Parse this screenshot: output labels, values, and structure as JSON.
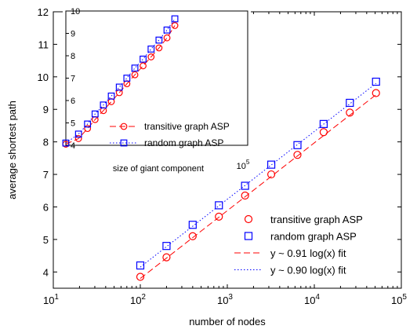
{
  "chart_data": [
    {
      "type": "scatter",
      "xlabel": "number of nodes",
      "ylabel": "average shortest path",
      "xscale": "log",
      "xlim": [
        10,
        100000
      ],
      "ylim": [
        3.5,
        12
      ],
      "xticks": [
        10,
        100,
        1000,
        10000,
        100000
      ],
      "xtick_labels": [
        {
          "base": "10",
          "exp": "1"
        },
        {
          "base": "10",
          "exp": "2"
        },
        {
          "base": "10",
          "exp": "3"
        },
        {
          "base": "10",
          "exp": "4"
        },
        {
          "base": "10",
          "exp": "5"
        }
      ],
      "yticks": [
        4,
        5,
        6,
        7,
        8,
        9,
        10,
        11,
        12
      ],
      "ytick_labels": [
        "4",
        "5",
        "6",
        "7",
        "8",
        "9",
        "10",
        "11",
        "12"
      ],
      "grid": false,
      "legend_position": "bottom-right",
      "series": [
        {
          "name": "transitive graph ASP",
          "marker": "circle",
          "color": "#ff0000",
          "x": [
            100,
            200,
            400,
            800,
            1600,
            3200,
            6400,
            12800,
            25600,
            51200
          ],
          "y": [
            3.85,
            4.45,
            5.1,
            5.7,
            6.35,
            7.0,
            7.6,
            8.3,
            8.9,
            9.5
          ]
        },
        {
          "name": "random graph ASP",
          "marker": "square",
          "color": "#0000ff",
          "x": [
            100,
            200,
            400,
            800,
            1600,
            3200,
            6400,
            12800,
            25600,
            51200
          ],
          "y": [
            4.2,
            4.8,
            5.45,
            6.05,
            6.65,
            7.3,
            7.9,
            8.55,
            9.2,
            9.85
          ]
        },
        {
          "name": "y ~ 0.91 log(x) fit",
          "style": "dashed",
          "color": "#ff0000",
          "x": [
            100,
            51200
          ],
          "y": [
            3.8,
            9.45
          ]
        },
        {
          "name": "y ~ 0.90 log(x) fit",
          "style": "dotted",
          "color": "#0000ff",
          "x": [
            100,
            51200
          ],
          "y": [
            4.15,
            9.8
          ]
        }
      ]
    },
    {
      "type": "scatter",
      "xlabel": "size of giant component",
      "ylabel": "",
      "xscale": "log",
      "xlim": [
        10,
        100000
      ],
      "ylim": [
        4,
        10
      ],
      "xticks": [
        100000
      ],
      "xtick_labels": [
        {
          "base": "10",
          "exp": "5"
        }
      ],
      "yticks": [
        4,
        5,
        6,
        7,
        8,
        9,
        10
      ],
      "ytick_labels": [
        "4",
        "5",
        "6",
        "7",
        "8",
        "9",
        "10"
      ],
      "grid": false,
      "legend_position": "bottom",
      "series": [
        {
          "name": "transitive graph ASP",
          "marker": "circle",
          "color": "#ff0000",
          "line": "dashed",
          "x": [
            10,
            19,
            30,
            44,
            67,
            100,
            150,
            220,
            330,
            500,
            750,
            1120,
            1680,
            2500
          ],
          "y": [
            4.05,
            4.3,
            4.75,
            5.15,
            5.55,
            5.95,
            6.35,
            6.75,
            7.15,
            7.55,
            7.95,
            8.35,
            8.8,
            9.35
          ]
        },
        {
          "name": "random graph ASP",
          "marker": "square",
          "color": "#0000ff",
          "line": "dotted",
          "x": [
            10,
            19,
            30,
            44,
            67,
            100,
            150,
            220,
            330,
            500,
            750,
            1120,
            1680,
            2500
          ],
          "y": [
            4.1,
            4.5,
            4.95,
            5.4,
            5.8,
            6.2,
            6.6,
            7.0,
            7.45,
            7.85,
            8.3,
            8.7,
            9.15,
            9.65
          ]
        }
      ]
    }
  ]
}
